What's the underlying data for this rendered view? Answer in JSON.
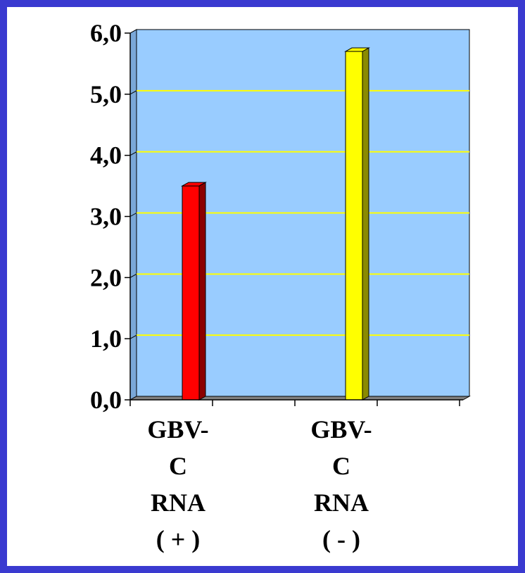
{
  "chart_data": {
    "type": "bar",
    "style": "3d-column",
    "categories": [
      [
        "GBV-",
        "C",
        "RNA",
        "( + )"
      ],
      [
        "GBV-",
        "C",
        "RNA",
        "( - )"
      ]
    ],
    "values": [
      3.5,
      5.7
    ],
    "bar_colors": [
      "#ff0000",
      "#ffff00"
    ],
    "bar_side_colors": [
      "#8b0000",
      "#8b8b00"
    ],
    "y_ticks": [
      "0,0",
      "1,0",
      "2,0",
      "3,0",
      "4,0",
      "5,0",
      "6,0"
    ],
    "ylim": [
      0,
      6
    ],
    "grid": true,
    "grid_color": "#ffff00",
    "plot_background": "#99ccff",
    "floor_color": "#808080",
    "title": "",
    "xlabel": "",
    "ylabel": ""
  },
  "colors": {
    "frame": "#3a3ad0",
    "background": "#ffffff"
  }
}
